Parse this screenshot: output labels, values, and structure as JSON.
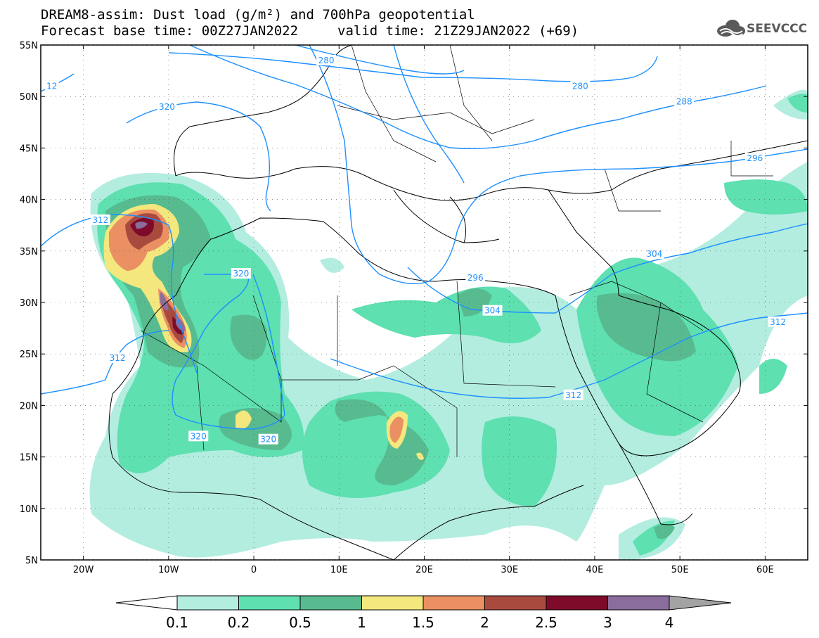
{
  "header": {
    "title_line1": "DREAM8-assim: Dust load (g/m²) and 700hPa geopotential",
    "title_line2a": "Forecast base time: 00Z27JAN2022",
    "title_line2b": "valid time: 21Z29JAN2022 (+69)"
  },
  "logo": {
    "name": "cloud-logo-icon",
    "text": "SEEVCCC",
    "color": "#5a5a5a"
  },
  "map": {
    "lon_range": [
      -25,
      65
    ],
    "lat_range": [
      5,
      55
    ],
    "lat_ticks": [
      {
        "v": 55,
        "label": "55N"
      },
      {
        "v": 50,
        "label": "50N"
      },
      {
        "v": 45,
        "label": "45N"
      },
      {
        "v": 40,
        "label": "40N"
      },
      {
        "v": 35,
        "label": "35N"
      },
      {
        "v": 30,
        "label": "30N"
      },
      {
        "v": 25,
        "label": "25N"
      },
      {
        "v": 20,
        "label": "20N"
      },
      {
        "v": 15,
        "label": "15N"
      },
      {
        "v": 10,
        "label": "10N"
      },
      {
        "v": 5,
        "label": "5N"
      }
    ],
    "lon_ticks": [
      {
        "v": -20,
        "label": "20W"
      },
      {
        "v": -10,
        "label": "10W"
      },
      {
        "v": 0,
        "label": "0"
      },
      {
        "v": 10,
        "label": "10E"
      },
      {
        "v": 20,
        "label": "20E"
      },
      {
        "v": 30,
        "label": "30E"
      },
      {
        "v": 40,
        "label": "40E"
      },
      {
        "v": 50,
        "label": "50E"
      },
      {
        "v": 60,
        "label": "60E"
      }
    ],
    "contour_color": "#1e90ff",
    "contour_labels": [
      {
        "text": "12",
        "lon": -23.7,
        "lat": 51.0
      },
      {
        "text": "280",
        "lon": 8.5,
        "lat": 53.5
      },
      {
        "text": "280",
        "lon": 38.3,
        "lat": 51.0
      },
      {
        "text": "288",
        "lon": 50.5,
        "lat": 49.5
      },
      {
        "text": "320",
        "lon": -10.2,
        "lat": 49.0
      },
      {
        "text": "296",
        "lon": 58.8,
        "lat": 44.0
      },
      {
        "text": "312",
        "lon": -18.0,
        "lat": 38.0
      },
      {
        "text": "304",
        "lon": 47.0,
        "lat": 34.7
      },
      {
        "text": "320",
        "lon": -1.5,
        "lat": 32.8
      },
      {
        "text": "296",
        "lon": 26.0,
        "lat": 32.4
      },
      {
        "text": "304",
        "lon": 28.0,
        "lat": 29.2
      },
      {
        "text": "312",
        "lon": 61.5,
        "lat": 28.1
      },
      {
        "text": "312",
        "lon": -16.0,
        "lat": 24.6
      },
      {
        "text": "312",
        "lon": 37.5,
        "lat": 21.0
      },
      {
        "text": "320",
        "lon": -6.5,
        "lat": 17.0
      },
      {
        "text": "320",
        "lon": 1.7,
        "lat": 16.7
      }
    ]
  },
  "colorbar": {
    "name": "dust-load-colorbar",
    "labels": [
      "0.1",
      "0.2",
      "0.5",
      "1",
      "1.5",
      "2",
      "2.5",
      "3",
      "4"
    ],
    "colors": [
      "#ffffff",
      "#b3ede0",
      "#5ee0b1",
      "#57bb8f",
      "#f4e77d",
      "#ea9063",
      "#a94a3f",
      "#7e0b2a",
      "#8a6d9d",
      "#a3a3a3"
    ]
  },
  "chart_data": {
    "type": "heatmap",
    "title": "DREAM8-assim: Dust load (g/m²) and 700hPa geopotential",
    "field": "dust load",
    "unit": "g/m²",
    "levels": [
      0.1,
      0.2,
      0.5,
      1,
      1.5,
      2,
      2.5,
      3,
      4
    ],
    "contour_field": "700hPa geopotential",
    "contour_values": [
      12,
      280,
      288,
      296,
      304,
      312,
      320
    ],
    "xlim": [
      -25,
      65
    ],
    "ylim": [
      5,
      55
    ]
  }
}
